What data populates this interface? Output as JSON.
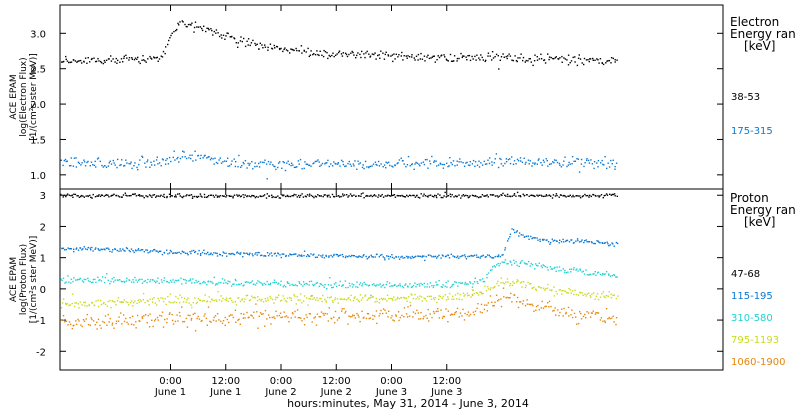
{
  "chart_data": [
    {
      "type": "scatter",
      "title": "Electron",
      "legend_title": [
        "Electron",
        "Energy ran",
        "[keV]"
      ],
      "ylabel": [
        "ACE EPAM",
        "log(Electron Flux)",
        "[1/(cm²s ster MeV)]"
      ],
      "ylim": [
        0.8,
        3.4
      ],
      "yticks": [
        "1.0",
        "1.5",
        "2.0",
        "2.5",
        "3.0"
      ],
      "series": [
        {
          "name": "38-53",
          "color": "#000000",
          "x_hours": [
            -18,
            -14,
            -10,
            -6,
            -4,
            -2,
            -1,
            0,
            2,
            4,
            6,
            8,
            10,
            12,
            16,
            20,
            24,
            28,
            32,
            36,
            40,
            44,
            48,
            52,
            56,
            60,
            64,
            68,
            72,
            76,
            80,
            84,
            88,
            92,
            96
          ],
          "values": [
            2.62,
            2.63,
            2.65,
            2.62,
            2.66,
            2.65,
            2.83,
            3.0,
            3.14,
            3.12,
            3.08,
            3.05,
            3.0,
            2.96,
            2.88,
            2.82,
            2.78,
            2.75,
            2.73,
            2.71,
            2.7,
            2.69,
            2.68,
            2.67,
            2.67,
            2.66,
            2.66,
            2.66,
            2.66,
            2.65,
            2.65,
            2.64,
            2.63,
            2.62,
            2.6
          ]
        },
        {
          "name": "175-315",
          "color": "#0a78d2",
          "x_hours": [
            -18,
            -12,
            -6,
            -3,
            0,
            2,
            6,
            12,
            18,
            24,
            30,
            36,
            42,
            48,
            54,
            60,
            66,
            72,
            78,
            84,
            90,
            96
          ],
          "values": [
            1.18,
            1.17,
            1.18,
            1.18,
            1.25,
            1.27,
            1.25,
            1.2,
            1.17,
            1.16,
            1.16,
            1.16,
            1.16,
            1.16,
            1.17,
            1.18,
            1.17,
            1.2,
            1.19,
            1.18,
            1.18,
            1.17
          ]
        }
      ]
    },
    {
      "type": "scatter",
      "title": "Proton",
      "legend_title": [
        "Proton",
        "Energy ran",
        "[keV]"
      ],
      "ylabel": [
        "ACE EPAM",
        "log(Proton Flux)",
        "[1/(cm²s ster MeV)]"
      ],
      "ylim": [
        -2.6,
        3.2
      ],
      "yticks": [
        "-2",
        "-1",
        "0",
        "1",
        "2",
        "3"
      ],
      "series": [
        {
          "name": "47-68",
          "color": "#000000",
          "x_hours": [
            -18,
            0,
            24,
            48,
            72,
            96
          ],
          "values": [
            3.0,
            3.0,
            3.0,
            3.0,
            3.01,
            3.01
          ]
        },
        {
          "name": "115-195",
          "color": "#0a78d2",
          "x_hours": [
            -18,
            -10,
            0,
            10,
            20,
            30,
            40,
            50,
            60,
            66,
            68,
            70,
            72,
            74,
            78,
            82,
            88,
            96
          ],
          "values": [
            1.3,
            1.25,
            1.2,
            1.15,
            1.12,
            1.1,
            1.07,
            1.05,
            1.05,
            1.06,
            1.05,
            1.03,
            1.1,
            1.9,
            1.65,
            1.55,
            1.55,
            1.45
          ]
        },
        {
          "name": "310-580",
          "color": "#22d2d2",
          "x_hours": [
            -18,
            -10,
            0,
            10,
            20,
            30,
            40,
            50,
            60,
            64,
            68,
            70,
            72,
            76,
            80,
            84,
            90,
            96
          ],
          "values": [
            0.3,
            0.28,
            0.27,
            0.25,
            0.2,
            0.17,
            0.15,
            0.15,
            0.15,
            0.18,
            0.3,
            0.75,
            0.9,
            0.85,
            0.75,
            0.65,
            0.55,
            0.45
          ]
        },
        {
          "name": "795-1193",
          "color": "#c8dc1e",
          "x_hours": [
            -18,
            -10,
            0,
            10,
            20,
            30,
            40,
            50,
            60,
            64,
            68,
            70,
            72,
            76,
            80,
            84,
            90,
            96
          ],
          "values": [
            -0.45,
            -0.4,
            -0.35,
            -0.33,
            -0.3,
            -0.3,
            -0.3,
            -0.28,
            -0.25,
            -0.2,
            -0.05,
            0.15,
            0.25,
            0.2,
            0.05,
            -0.05,
            -0.15,
            -0.2
          ]
        },
        {
          "name": "1060-1900",
          "color": "#e6870a",
          "x_hours": [
            -18,
            -10,
            0,
            10,
            20,
            30,
            40,
            50,
            60,
            64,
            68,
            70,
            72,
            76,
            80,
            84,
            90,
            96
          ],
          "values": [
            -1.05,
            -1.0,
            -0.95,
            -0.92,
            -0.9,
            -0.88,
            -0.88,
            -0.85,
            -0.8,
            -0.75,
            -0.6,
            -0.4,
            -0.3,
            -0.4,
            -0.55,
            -0.65,
            -0.8,
            -0.9
          ]
        }
      ]
    }
  ],
  "x_axis": {
    "xlim_hours": [
      -24,
      120
    ],
    "data_end_hours": 97,
    "ticks": [
      {
        "hours": 0,
        "time": "0:00",
        "date": "June 1"
      },
      {
        "hours": 12,
        "time": "12:00",
        "date": "June 1"
      },
      {
        "hours": 24,
        "time": "0:00",
        "date": "June 2"
      },
      {
        "hours": 36,
        "time": "12:00",
        "date": "June 2"
      },
      {
        "hours": 48,
        "time": "0:00",
        "date": "June 3"
      },
      {
        "hours": 60,
        "time": "12:00",
        "date": "June 3"
      }
    ],
    "xlabel": "hours:minutes, May 31, 2014 - June  3, 2014"
  }
}
